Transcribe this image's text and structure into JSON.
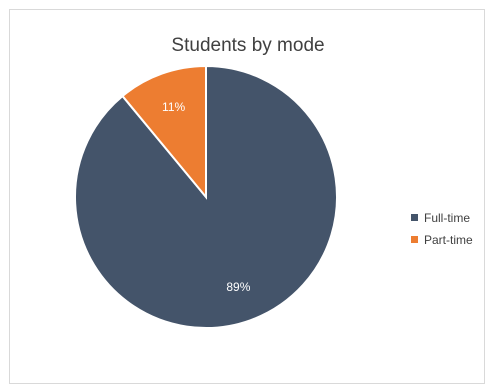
{
  "chart_data": {
    "type": "pie",
    "title": "Students by mode",
    "categories": [
      "Full-time",
      "Part-time"
    ],
    "values": [
      89,
      11
    ],
    "labels": [
      "89%",
      "11%"
    ],
    "colors": [
      "#44546a",
      "#ed7d31"
    ],
    "legend_position": "right",
    "legend": [
      "Full-time",
      "Part-time"
    ]
  }
}
